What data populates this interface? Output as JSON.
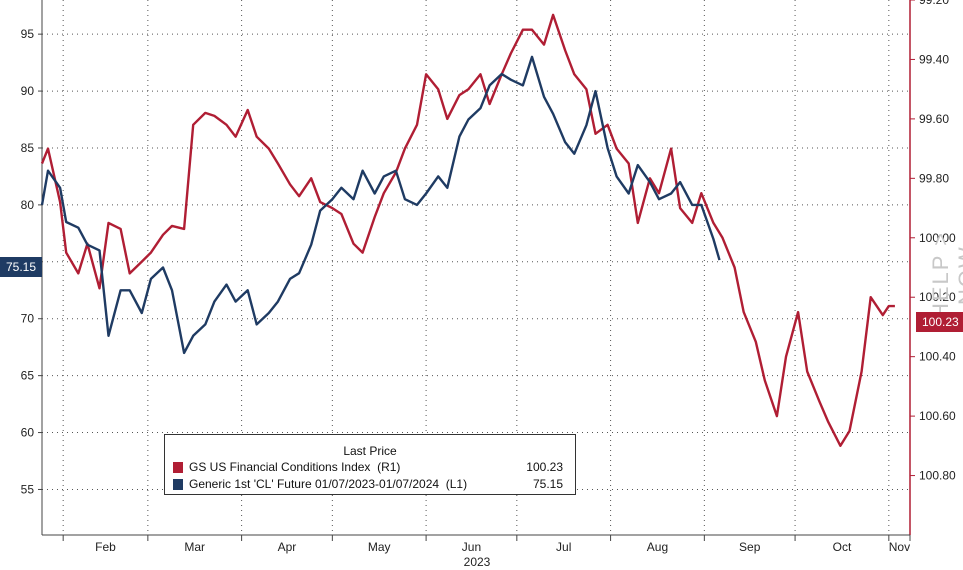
{
  "chart_data": {
    "type": "line",
    "x_label_year": "2023",
    "x_ticks": [
      "Feb",
      "Mar",
      "Apr",
      "May",
      "Jun",
      "Jul",
      "Aug",
      "Sep",
      "Oct",
      "Nov"
    ],
    "left_axis": {
      "ylim": [
        51,
        98
      ],
      "ticks": [
        "95",
        "90",
        "85",
        "80",
        "75",
        "70",
        "65",
        "60",
        "55"
      ],
      "tick_values": [
        95,
        90,
        85,
        80,
        75,
        70,
        65,
        60,
        55
      ]
    },
    "right_axis": {
      "ylim": [
        101.0,
        99.2
      ],
      "inverted": true,
      "ticks": [
        "99.20",
        "99.40",
        "99.60",
        "99.80",
        "100.00",
        "100.20",
        "100.40",
        "100.60",
        "100.80"
      ],
      "tick_values": [
        99.2,
        99.4,
        99.6,
        99.8,
        100.0,
        100.2,
        100.4,
        100.6,
        100.8
      ]
    },
    "grid": true,
    "legend": {
      "placement": "bottom-center",
      "title": "Last Price",
      "entries": [
        {
          "name": "GS US Financial Conditions Index  (R1)",
          "value": "100.23",
          "color": "#b01e34"
        },
        {
          "name": "Generic 1st 'CL' Future 01/07/2023-01/07/2024  (L1)",
          "value": "75.15",
          "color": "#1f3b63"
        }
      ]
    },
    "last_value_tags": {
      "left": "75.15",
      "right": "100.23"
    },
    "series": [
      {
        "name": "GS US Financial Conditions Index  (R1)",
        "axis": "right",
        "color": "#b01e34",
        "x": [
          "2023-01-25",
          "2023-01-27",
          "2023-01-31",
          "2023-02-02",
          "2023-02-06",
          "2023-02-09",
          "2023-02-13",
          "2023-02-16",
          "2023-02-20",
          "2023-02-23",
          "2023-02-27",
          "2023-03-02",
          "2023-03-06",
          "2023-03-09",
          "2023-03-13",
          "2023-03-16",
          "2023-03-20",
          "2023-03-23",
          "2023-03-27",
          "2023-03-30",
          "2023-04-03",
          "2023-04-06",
          "2023-04-10",
          "2023-04-13",
          "2023-04-17",
          "2023-04-20",
          "2023-04-24",
          "2023-04-27",
          "2023-05-01",
          "2023-05-04",
          "2023-05-08",
          "2023-05-11",
          "2023-05-15",
          "2023-05-18",
          "2023-05-22",
          "2023-05-25",
          "2023-05-29",
          "2023-06-01",
          "2023-06-05",
          "2023-06-08",
          "2023-06-12",
          "2023-06-15",
          "2023-06-19",
          "2023-06-22",
          "2023-06-26",
          "2023-06-29",
          "2023-07-03",
          "2023-07-06",
          "2023-07-10",
          "2023-07-13",
          "2023-07-17",
          "2023-07-20",
          "2023-07-24",
          "2023-07-27",
          "2023-07-31",
          "2023-08-03",
          "2023-08-07",
          "2023-08-10",
          "2023-08-14",
          "2023-08-17",
          "2023-08-21",
          "2023-08-24",
          "2023-08-28",
          "2023-08-31",
          "2023-09-04",
          "2023-09-07",
          "2023-09-11",
          "2023-09-14",
          "2023-09-18",
          "2023-09-21",
          "2023-09-25",
          "2023-09-28",
          "2023-10-02",
          "2023-10-05",
          "2023-10-09",
          "2023-10-12",
          "2023-10-16",
          "2023-10-19",
          "2023-10-23",
          "2023-10-26",
          "2023-10-30",
          "2023-11-01",
          "2023-11-03"
        ],
        "values": [
          99.75,
          99.7,
          99.88,
          100.05,
          100.12,
          100.02,
          100.17,
          99.95,
          99.97,
          100.12,
          100.08,
          100.05,
          99.99,
          99.96,
          99.97,
          99.62,
          99.58,
          99.59,
          99.62,
          99.66,
          99.57,
          99.66,
          99.7,
          99.75,
          99.82,
          99.86,
          99.8,
          99.88,
          99.9,
          99.92,
          100.02,
          100.05,
          99.93,
          99.85,
          99.78,
          99.7,
          99.62,
          99.45,
          99.5,
          99.6,
          99.52,
          99.5,
          99.45,
          99.55,
          99.45,
          99.38,
          99.3,
          99.3,
          99.35,
          99.25,
          99.37,
          99.45,
          99.5,
          99.65,
          99.62,
          99.7,
          99.75,
          99.95,
          99.8,
          99.85,
          99.7,
          99.9,
          99.95,
          99.85,
          99.95,
          100.0,
          100.1,
          100.25,
          100.35,
          100.48,
          100.6,
          100.4,
          100.25,
          100.45,
          100.55,
          100.62,
          100.7,
          100.65,
          100.45,
          100.2,
          100.26,
          100.23,
          100.23
        ]
      },
      {
        "name": "Generic 1st 'CL' Future 01/07/2023-01/07/2024  (L1)",
        "axis": "left",
        "color": "#1f3b63",
        "x": [
          "2023-01-25",
          "2023-01-27",
          "2023-01-31",
          "2023-02-02",
          "2023-02-06",
          "2023-02-09",
          "2023-02-13",
          "2023-02-16",
          "2023-02-20",
          "2023-02-23",
          "2023-02-27",
          "2023-03-02",
          "2023-03-06",
          "2023-03-09",
          "2023-03-13",
          "2023-03-16",
          "2023-03-20",
          "2023-03-23",
          "2023-03-27",
          "2023-03-30",
          "2023-04-03",
          "2023-04-06",
          "2023-04-10",
          "2023-04-13",
          "2023-04-17",
          "2023-04-20",
          "2023-04-24",
          "2023-04-27",
          "2023-05-01",
          "2023-05-04",
          "2023-05-08",
          "2023-05-11",
          "2023-05-15",
          "2023-05-18",
          "2023-05-22",
          "2023-05-25",
          "2023-05-29",
          "2023-06-01",
          "2023-06-05",
          "2023-06-08",
          "2023-06-12",
          "2023-06-15",
          "2023-06-19",
          "2023-06-22",
          "2023-06-26",
          "2023-06-29",
          "2023-07-03",
          "2023-07-06",
          "2023-07-10",
          "2023-07-13",
          "2023-07-17",
          "2023-07-20",
          "2023-07-24",
          "2023-07-27",
          "2023-07-31",
          "2023-08-03",
          "2023-08-07",
          "2023-08-10",
          "2023-08-14",
          "2023-08-17",
          "2023-08-21",
          "2023-08-24",
          "2023-08-28",
          "2023-08-31",
          "2023-09-04",
          "2023-09-06"
        ],
        "values": [
          80.0,
          83.0,
          81.5,
          78.5,
          78.0,
          76.5,
          76.0,
          68.5,
          72.5,
          72.5,
          70.5,
          73.5,
          74.5,
          72.5,
          67.0,
          68.5,
          69.5,
          71.5,
          73.0,
          71.5,
          72.5,
          69.5,
          70.5,
          71.5,
          73.5,
          74.0,
          76.5,
          79.5,
          80.5,
          81.5,
          80.5,
          83.0,
          81.0,
          82.5,
          83.0,
          80.5,
          80.0,
          81.0,
          82.5,
          81.5,
          86.0,
          87.5,
          88.5,
          90.5,
          91.5,
          91.0,
          90.5,
          93.0,
          89.5,
          88.0,
          85.5,
          84.5,
          87.0,
          90.0,
          85.0,
          82.5,
          81.0,
          83.5,
          82.0,
          80.5,
          81.0,
          82.0,
          80.0,
          80.0,
          77.0,
          75.15
        ]
      }
    ]
  }
}
